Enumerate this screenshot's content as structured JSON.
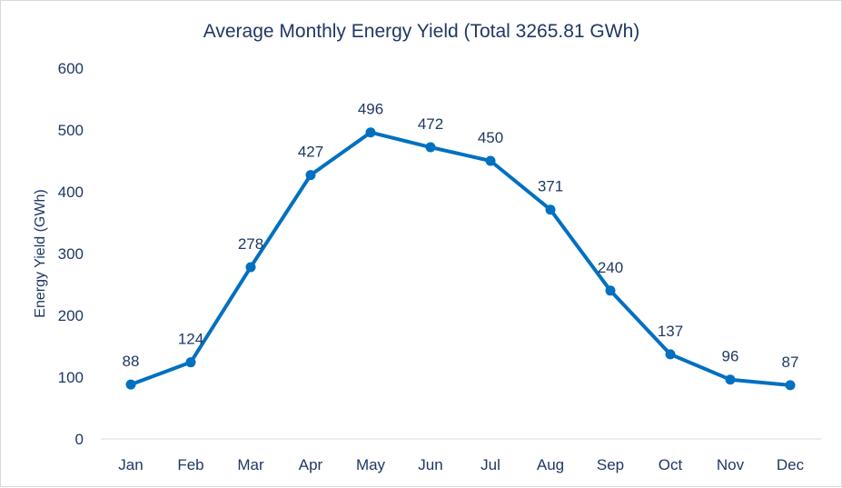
{
  "chart_data": {
    "type": "line",
    "title": "Average Monthly Energy Yield (Total 3265.81 GWh)",
    "xlabel": "",
    "ylabel": "Energy Yield (GWh)",
    "categories": [
      "Jan",
      "Feb",
      "Mar",
      "Apr",
      "May",
      "Jun",
      "Jul",
      "Aug",
      "Sep",
      "Oct",
      "Nov",
      "Dec"
    ],
    "series": [
      {
        "values": [
          88,
          124,
          278,
          427,
          496,
          472,
          450,
          371,
          240,
          137,
          96,
          87
        ]
      }
    ],
    "data_labels": [
      "88",
      "124",
      "278",
      "427",
      "496",
      "472",
      "450",
      "371",
      "240",
      "137",
      "96",
      "87"
    ],
    "ylim": [
      0,
      600
    ],
    "yticks": [
      "0",
      "100",
      "200",
      "300",
      "400",
      "500",
      "600"
    ],
    "grid": false,
    "legend": "none",
    "colors": {
      "line": "#0070c0",
      "text": "#1f3864",
      "axis": "#d9d9d9"
    }
  }
}
